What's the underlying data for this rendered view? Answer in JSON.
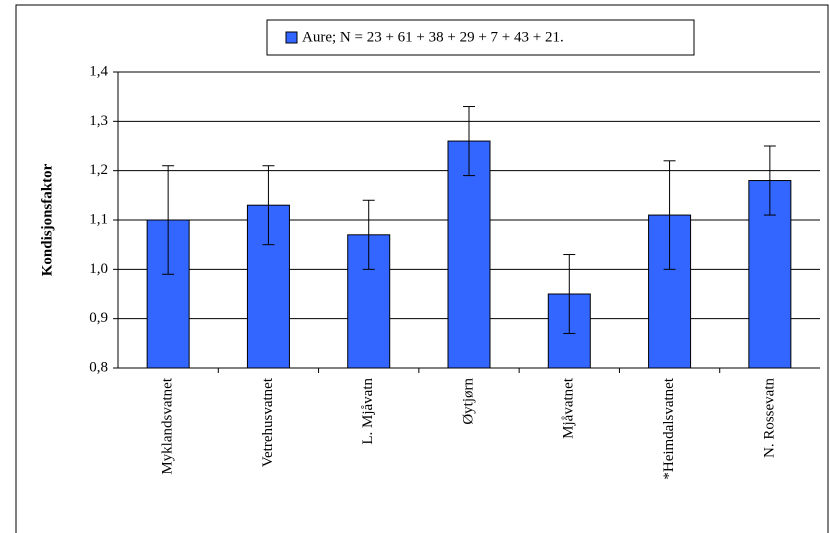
{
  "chart_data": {
    "type": "bar",
    "y_axis_label": "Kondisjonsfaktor",
    "categories": [
      "Myklandsvatnet",
      "Vetrehusvatnet",
      "L. Mjåvatn",
      "Øytjørn",
      "Mjåvatnet",
      "*Heimdalsvatnet",
      "N. Rossevatn"
    ],
    "series": [
      {
        "name": "Aure; N = 23 + 61 + 38 + 29 + 7 + 43 + 21.",
        "color": "#3366ff",
        "values": [
          1.1,
          1.13,
          1.07,
          1.26,
          0.95,
          1.11,
          1.18
        ],
        "errors": [
          0.11,
          0.08,
          0.07,
          0.07,
          0.08,
          0.11,
          0.07
        ]
      }
    ],
    "ylim": [
      0.8,
      1.4
    ],
    "yticks": [
      {
        "value": 0.8,
        "label": "0,8"
      },
      {
        "value": 0.9,
        "label": "0,9"
      },
      {
        "value": 1.0,
        "label": "1,0"
      },
      {
        "value": 1.1,
        "label": "1,1"
      },
      {
        "value": 1.2,
        "label": "1,2"
      },
      {
        "value": 1.3,
        "label": "1,3"
      },
      {
        "value": 1.4,
        "label": "1,4"
      }
    ],
    "grid": true,
    "legend": "top"
  }
}
